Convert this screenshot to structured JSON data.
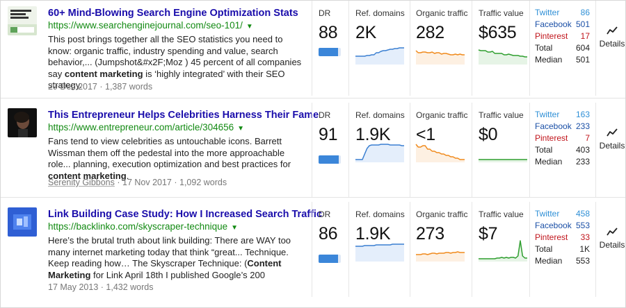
{
  "columns": {
    "dr": "DR",
    "ref_domains": "Ref. domains",
    "organic_traffic": "Organic traffic",
    "traffic_value": "Traffic value"
  },
  "social_labels": {
    "twitter": "Twitter",
    "facebook": "Facebook",
    "pinterest": "Pinterest",
    "total": "Total",
    "median": "Median"
  },
  "details_label": "Details",
  "colors": {
    "title_link": "#1a0dab",
    "url_green": "#138a13",
    "dr_blue": "#3b86d9",
    "ref_blue": "#3a7fd1",
    "organic_orange": "#f08a1c",
    "value_green": "#2e9e2e",
    "twitter": "#2e8fd6",
    "facebook": "#1a4fa6",
    "pinterest": "#c0141b"
  },
  "results": [
    {
      "thumb_icon": "article-thumbnail-seo-stats",
      "thumb_text": "60+ Mind-Blowing Stats Search Engine Optimiz",
      "title": "60+ Mind-Blowing Search Engine Optimization Stats",
      "url": "https://www.searchenginejournal.com/seo-101/",
      "snippet_parts": [
        {
          "t": "This post brings together all the SEO statistics you need to know: organic traffic, industry spending and value, search behavior,... (Jumpshot&#x2F;Moz ) 45 percent of all companies say ",
          "b": false
        },
        {
          "t": "content marketing",
          "b": true
        },
        {
          "t": " is ‘highly integrated’ with their SEO strategy.",
          "b": false
        }
      ],
      "author": "",
      "date": "29 Dec 2017",
      "words": "1,387 words",
      "dr": "88",
      "dr_fill": 0.88,
      "ref_domains": "2K",
      "organic_traffic": "282",
      "traffic_value": "$635",
      "spark_ref": [
        22,
        22,
        22,
        22,
        22,
        21,
        21,
        20,
        20,
        17,
        17,
        15,
        14,
        14,
        13,
        12,
        12,
        11,
        11,
        10,
        10,
        10
      ],
      "spark_org": [
        14,
        17,
        17,
        16,
        16,
        17,
        17,
        16,
        18,
        17,
        17,
        19,
        18,
        18,
        19,
        20,
        20,
        19,
        20,
        19,
        20,
        20
      ],
      "spark_val": [
        13,
        14,
        14,
        14,
        16,
        16,
        15,
        18,
        18,
        18,
        18,
        20,
        20,
        19,
        20,
        21,
        21,
        21,
        22,
        22,
        23,
        23
      ],
      "social": {
        "twitter": "86",
        "facebook": "501",
        "pinterest": "17",
        "total": "604",
        "median": "501"
      }
    },
    {
      "thumb_icon": "article-thumbnail-woman-portrait",
      "thumb_text": "",
      "title": "This Entrepreneur Helps Celebrities Harness Their Fame",
      "url": "https://www.entrepreneur.com/article/304656",
      "snippet_parts": [
        {
          "t": "Fans tend to view celebrities as untouchable icons. Barrett Wissman them off the pedestal into the more approachable role... planning, execution optimization and best practices for ",
          "b": false
        },
        {
          "t": "content marketing",
          "b": true
        },
        {
          "t": ".",
          "b": false
        }
      ],
      "author": "Serenity Gibbons",
      "date": "17 Nov 2017",
      "words": "1,092 words",
      "dr": "91",
      "dr_fill": 0.91,
      "ref_domains": "1.9K",
      "organic_traffic": "<1",
      "traffic_value": "$0",
      "spark_ref": [
        30,
        30,
        30,
        30,
        22,
        14,
        10,
        9,
        9,
        9,
        9,
        8,
        8,
        8,
        8,
        9,
        9,
        9,
        9,
        9,
        10,
        10
      ],
      "spark_org": [
        8,
        12,
        12,
        10,
        10,
        15,
        15,
        18,
        18,
        20,
        20,
        22,
        22,
        24,
        24,
        26,
        26,
        28,
        28,
        30,
        30,
        30
      ],
      "spark_val": [
        30,
        30,
        30,
        30,
        30,
        30,
        30,
        30,
        30,
        30,
        30,
        30,
        30,
        30,
        30,
        30,
        30,
        30,
        30,
        30,
        30,
        30
      ],
      "social": {
        "twitter": "163",
        "facebook": "233",
        "pinterest": "7",
        "total": "403",
        "median": "233"
      }
    },
    {
      "thumb_icon": "article-thumbnail-blue-graphic",
      "thumb_text": "",
      "title": "Link Building Case Study: How I Increased Search Traffic",
      "url": "https://backlinko.com/skyscraper-technique",
      "snippet_parts": [
        {
          "t": "Here’s the brutal truth about link building: There are WAY too many internet marketing today that think “great... Technique. Keep reading how… The Skyscraper Technique: (",
          "b": false
        },
        {
          "t": "Content Marketing",
          "b": true
        },
        {
          "t": " for Link April 18th I published  Google’s 200",
          "b": false
        }
      ],
      "author": "",
      "date": "17 May 2013",
      "words": "1,432 words",
      "dr": "86",
      "dr_fill": 0.86,
      "ref_domains": "1.9K",
      "organic_traffic": "273",
      "traffic_value": "$7",
      "spark_ref": [
        12,
        12,
        12,
        12,
        11,
        11,
        11,
        11,
        11,
        10,
        10,
        10,
        10,
        10,
        10,
        10,
        9,
        9,
        9,
        9,
        9,
        9
      ],
      "spark_org": [
        24,
        24,
        24,
        23,
        23,
        24,
        23,
        22,
        22,
        23,
        22,
        22,
        22,
        21,
        21,
        22,
        21,
        21,
        20,
        21,
        21,
        21
      ],
      "spark_val": [
        30,
        30,
        30,
        30,
        30,
        30,
        30,
        30,
        29,
        29,
        28,
        29,
        28,
        29,
        28,
        28,
        29,
        26,
        4,
        26,
        29,
        29
      ],
      "social": {
        "twitter": "458",
        "facebook": "553",
        "pinterest": "33",
        "total": "1K",
        "median": "553"
      }
    }
  ]
}
